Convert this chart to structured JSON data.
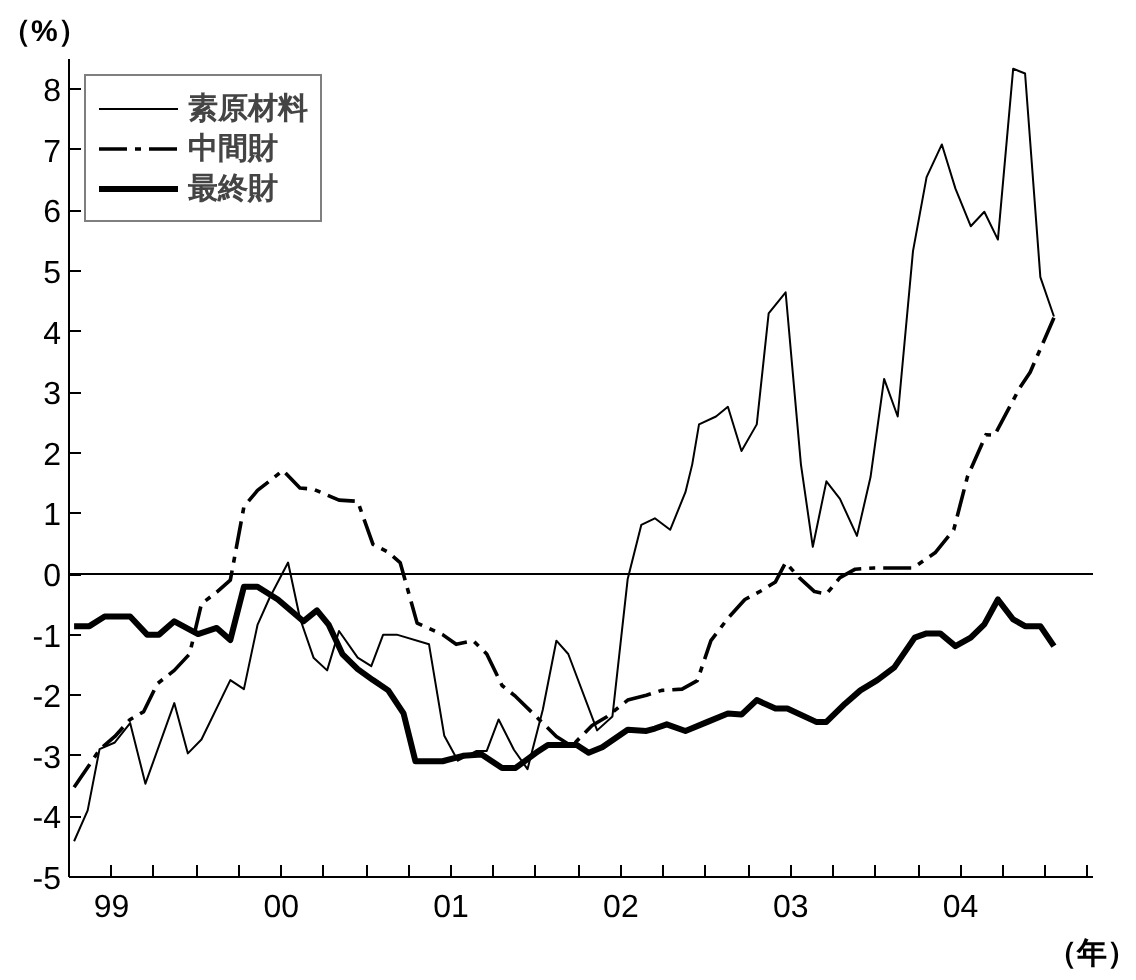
{
  "chart_data": {
    "type": "line",
    "xlabel": "（年）",
    "ylabel": "（%）",
    "xlim": [
      1998.75,
      2004.78
    ],
    "ylim": [
      -5,
      8.5
    ],
    "xticks": [
      {
        "value": 1999,
        "label": "99"
      },
      {
        "value": 1999.25,
        "label": null
      },
      {
        "value": 1999.5,
        "label": null
      },
      {
        "value": 1999.75,
        "label": null
      },
      {
        "value": 2000,
        "label": "00"
      },
      {
        "value": 2000.25,
        "label": null
      },
      {
        "value": 2000.5,
        "label": null
      },
      {
        "value": 2000.75,
        "label": null
      },
      {
        "value": 2001,
        "label": "01"
      },
      {
        "value": 2001.25,
        "label": null
      },
      {
        "value": 2001.5,
        "label": null
      },
      {
        "value": 2001.75,
        "label": null
      },
      {
        "value": 2002,
        "label": "02"
      },
      {
        "value": 2002.25,
        "label": null
      },
      {
        "value": 2002.5,
        "label": null
      },
      {
        "value": 2002.75,
        "label": null
      },
      {
        "value": 2003,
        "label": "03"
      },
      {
        "value": 2003.25,
        "label": null
      },
      {
        "value": 2003.5,
        "label": null
      },
      {
        "value": 2003.75,
        "label": null
      },
      {
        "value": 2004,
        "label": "04"
      },
      {
        "value": 2004.25,
        "label": null
      },
      {
        "value": 2004.5,
        "label": null
      },
      {
        "value": 2004.75,
        "label": null
      }
    ],
    "yticks": [
      -5,
      -4,
      -3,
      -2,
      -1,
      0,
      1,
      2,
      3,
      4,
      5,
      6,
      7,
      8
    ],
    "grid": false,
    "legend": "top left",
    "ref_lines": [
      {
        "axis": "y",
        "value": 0,
        "label": null,
        "color": "#000000",
        "line_style": "solid"
      }
    ],
    "series": [
      {
        "name": "素原材料",
        "color": "#000000",
        "line_style": "solid",
        "x": [
          1998.78,
          1998.86,
          1998.93,
          1999.02,
          1999.11,
          1999.2,
          1999.37,
          1999.45,
          1999.53,
          1999.7,
          1999.78,
          1999.86,
          1999.93,
          2000.04,
          2000.11,
          2000.19,
          2000.27,
          2000.34,
          2000.45,
          2000.53,
          2000.6,
          2000.68,
          2000.87,
          2000.96,
          2001.04,
          2001.15,
          2001.21,
          2001.28,
          2001.37,
          2001.45,
          2001.54,
          2001.62,
          2001.69,
          2001.86,
          2001.95,
          2002.04,
          2002.12,
          2002.2,
          2002.29,
          2002.38,
          2002.42,
          2002.46,
          2002.56,
          2002.63,
          2002.71,
          2002.8,
          2002.87,
          2002.97,
          2003.06,
          2003.13,
          2003.21,
          2003.29,
          2003.39,
          2003.47,
          2003.55,
          2003.63,
          2003.72,
          2003.8,
          2003.89,
          2003.97,
          2004.06,
          2004.14,
          2004.22,
          2004.31,
          2004.38,
          2004.47,
          2004.55
        ],
        "values": [
          -4.41,
          -3.9,
          -2.89,
          -2.78,
          -2.46,
          -3.46,
          -2.13,
          -2.96,
          -2.73,
          -1.75,
          -1.9,
          -0.84,
          -0.4,
          0.19,
          -0.73,
          -1.38,
          -1.59,
          -0.94,
          -1.38,
          -1.52,
          -1.0,
          -1.0,
          -1.16,
          -2.67,
          -3.08,
          -2.92,
          -2.92,
          -2.4,
          -2.9,
          -3.22,
          -2.24,
          -1.1,
          -1.32,
          -2.58,
          -2.35,
          -0.08,
          0.81,
          0.92,
          0.73,
          1.35,
          1.81,
          2.47,
          2.6,
          2.76,
          2.03,
          2.47,
          4.3,
          4.65,
          1.81,
          0.45,
          1.53,
          1.24,
          0.63,
          1.6,
          3.22,
          2.6,
          5.33,
          6.55,
          7.09,
          6.36,
          5.74,
          5.98,
          5.52,
          8.34,
          8.26,
          4.9,
          4.25
        ]
      },
      {
        "name": "中間財",
        "color": "#000000",
        "line_style": "dashdot",
        "x": [
          1998.78,
          1998.93,
          1999.02,
          1999.11,
          1999.19,
          1999.27,
          1999.37,
          1999.46,
          1999.53,
          1999.62,
          1999.7,
          1999.78,
          1999.86,
          2000.01,
          2000.11,
          2000.19,
          2000.34,
          2000.45,
          2000.54,
          2000.63,
          2000.7,
          2000.8,
          2000.95,
          2001.03,
          2001.13,
          2001.21,
          2001.3,
          2001.38,
          2001.54,
          2001.62,
          2001.71,
          2001.83,
          2001.92,
          2002.04,
          2002.15,
          2002.24,
          2002.36,
          2002.45,
          2002.53,
          2002.63,
          2002.73,
          2002.83,
          2002.91,
          2002.97,
          2003.05,
          2003.14,
          2003.21,
          2003.29,
          2003.38,
          2003.49,
          2003.61,
          2003.72,
          2003.85,
          2003.96,
          2004.04,
          2004.15,
          2004.2,
          2004.35,
          2004.41,
          2004.55
        ],
        "values": [
          -3.52,
          -2.9,
          -2.68,
          -2.4,
          -2.27,
          -1.81,
          -1.59,
          -1.32,
          -0.49,
          -0.3,
          -0.1,
          1.11,
          1.38,
          1.71,
          1.42,
          1.4,
          1.22,
          1.2,
          0.49,
          0.36,
          0.19,
          -0.81,
          -1.0,
          -1.16,
          -1.1,
          -1.32,
          -1.84,
          -2.02,
          -2.46,
          -2.68,
          -2.84,
          -2.5,
          -2.35,
          -2.08,
          -2.0,
          -1.92,
          -1.9,
          -1.76,
          -1.1,
          -0.73,
          -0.42,
          -0.27,
          -0.13,
          0.19,
          -0.06,
          -0.29,
          -0.33,
          -0.06,
          0.08,
          0.1,
          0.1,
          0.1,
          0.35,
          0.73,
          1.6,
          2.3,
          2.29,
          3.08,
          3.33,
          4.23
        ]
      },
      {
        "name": "最終財",
        "color": "#000000",
        "line_style": "solid",
        "x": [
          1998.78,
          1998.87,
          1998.96,
          1999.11,
          1999.21,
          1999.28,
          1999.37,
          1999.51,
          1999.62,
          1999.7,
          1999.78,
          1999.86,
          1999.98,
          2000.13,
          2000.21,
          2000.28,
          2000.36,
          2000.45,
          2000.54,
          2000.63,
          2000.72,
          2000.79,
          2000.95,
          2001.07,
          2001.18,
          2001.3,
          2001.38,
          2001.5,
          2001.57,
          2001.74,
          2001.81,
          2001.89,
          2002.04,
          2002.15,
          2002.2,
          2002.27,
          2002.38,
          2002.51,
          2002.63,
          2002.71,
          2002.8,
          2002.91,
          2002.98,
          2003.15,
          2003.21,
          2003.32,
          2003.41,
          2003.51,
          2003.61,
          2003.73,
          2003.8,
          2003.88,
          2003.97,
          2004.06,
          2004.14,
          2004.22,
          2004.31,
          2004.38,
          2004.47,
          2004.55
        ],
        "values": [
          -0.86,
          -0.86,
          -0.7,
          -0.7,
          -1.0,
          -1.0,
          -0.78,
          -0.99,
          -0.89,
          -1.09,
          -0.21,
          -0.21,
          -0.42,
          -0.78,
          -0.6,
          -0.84,
          -1.32,
          -1.57,
          -1.75,
          -1.92,
          -2.3,
          -3.09,
          -3.09,
          -3.0,
          -2.98,
          -3.2,
          -3.2,
          -2.95,
          -2.82,
          -2.82,
          -2.95,
          -2.86,
          -2.57,
          -2.59,
          -2.55,
          -2.48,
          -2.59,
          -2.44,
          -2.3,
          -2.32,
          -2.08,
          -2.22,
          -2.22,
          -2.44,
          -2.44,
          -2.14,
          -1.92,
          -1.75,
          -1.54,
          -1.05,
          -0.98,
          -0.98,
          -1.19,
          -1.05,
          -0.83,
          -0.42,
          -0.75,
          -0.86,
          -0.86,
          -1.19
        ]
      }
    ]
  }
}
